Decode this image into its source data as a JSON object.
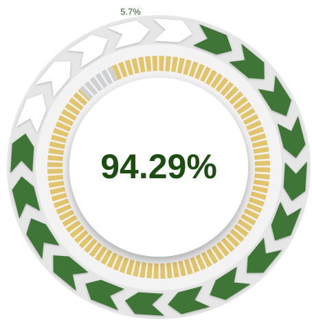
{
  "chart_data": {
    "type": "gauge",
    "value": 94.29,
    "value_label": "94.29%",
    "color": "#e2c46c",
    "remainder": 5.7,
    "remainder_label": "5.7%",
    "remainder_color": "#cfd0d2"
  }
}
